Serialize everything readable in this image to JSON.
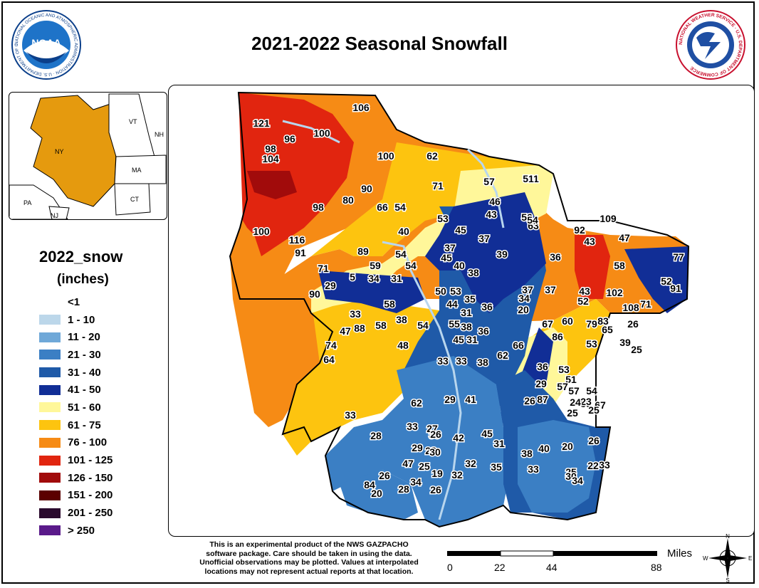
{
  "title": "2021-2022 Seasonal Snowfall",
  "noaa_logo": {
    "icon": "noaa-logo-icon",
    "ring_text": "NATIONAL OCEANIC AND ATMOSPHERIC ADMINISTRATION · U.S. DEPARTMENT OF COMMERCE",
    "center_text": "NOAA"
  },
  "nws_logo": {
    "icon": "nws-logo-icon",
    "ring_text": "NATIONAL WEATHER SERVICE · U.S. DEPARTMENT OF COMMERCE"
  },
  "inset": {
    "labels": [
      "VT",
      "NH",
      "NY",
      "MA",
      "CT",
      "PA",
      "NJ"
    ]
  },
  "legend": {
    "title": "2022_snow",
    "units": "(inches)",
    "items": [
      {
        "label": "<1",
        "color": "#ffffff"
      },
      {
        "label": "1 - 10",
        "color": "#bcd7ea"
      },
      {
        "label": "11 - 20",
        "color": "#6fa8d8"
      },
      {
        "label": "21 - 30",
        "color": "#3b7fc4"
      },
      {
        "label": "31 - 40",
        "color": "#1f5aa8"
      },
      {
        "label": "41 - 50",
        "color": "#112e96"
      },
      {
        "label": "51 - 60",
        "color": "#fff79a"
      },
      {
        "label": "61 - 75",
        "color": "#fdc40f"
      },
      {
        "label": "76 - 100",
        "color": "#f68b15"
      },
      {
        "label": "101 - 125",
        "color": "#e1250f"
      },
      {
        "label": "126 - 150",
        "color": "#a10b0b"
      },
      {
        "label": "151 - 200",
        "color": "#5b0000"
      },
      {
        "label": "201 - 250",
        "color": "#2b0a2e"
      },
      {
        "label": "> 250",
        "color": "#5a1a8a"
      }
    ]
  },
  "map_labels": [
    "106",
    "121",
    "100",
    "96",
    "98",
    "104",
    "100",
    "62",
    "71",
    "57",
    "51",
    "51",
    "90",
    "80",
    "98",
    "66",
    "54",
    "46",
    "43",
    "100",
    "116",
    "91",
    "89",
    "53",
    "40",
    "45",
    "37",
    "37",
    "54",
    "56",
    "63",
    "92",
    "109",
    "47",
    "54",
    "59",
    "45",
    "54",
    "40",
    "38",
    "39",
    "36",
    "43",
    "58",
    "77",
    "71",
    "29",
    "5",
    "34",
    "31",
    "90",
    "50",
    "53",
    "35",
    "44",
    "31",
    "36",
    "34",
    "37",
    "37",
    "43",
    "52",
    "102",
    "108",
    "71",
    "52",
    "91",
    "33",
    "58",
    "47",
    "88",
    "58",
    "38",
    "54",
    "55",
    "38",
    "36",
    "45",
    "31",
    "20",
    "67",
    "60",
    "79",
    "83",
    "74",
    "64",
    "48",
    "33",
    "33",
    "38",
    "62",
    "66",
    "86",
    "53",
    "65",
    "39",
    "26",
    "25",
    "36",
    "53",
    "29",
    "51",
    "57",
    "54",
    "57",
    "67",
    "39",
    "25",
    "62",
    "29",
    "41",
    "26",
    "87",
    "25",
    "23",
    "24",
    "33",
    "28",
    "33",
    "38",
    "27",
    "28",
    "29",
    "30",
    "31",
    "45",
    "42",
    "38",
    "40",
    "20",
    "26",
    "25",
    "26",
    "26",
    "47",
    "25",
    "19",
    "32",
    "32",
    "35",
    "33",
    "30",
    "34",
    "22",
    "33",
    "84",
    "20",
    "28",
    "34",
    "26"
  ],
  "disclaimer": [
    "This is an experimental product of the NWS GAZPACHO",
    "software package. Care should be taken in using the data.",
    "Unofficial observations may be plotted. Values at interpolated",
    "locations may not represent actual reports at that location."
  ],
  "scale": {
    "unit": "Miles",
    "ticks": [
      "0",
      "22",
      "44",
      "88"
    ]
  },
  "compass": {
    "n": "N",
    "s": "S",
    "e": "E",
    "w": "W"
  },
  "colors": {
    "frame": "#000000",
    "river": "#b8d6ee",
    "boundary": "#000000"
  }
}
